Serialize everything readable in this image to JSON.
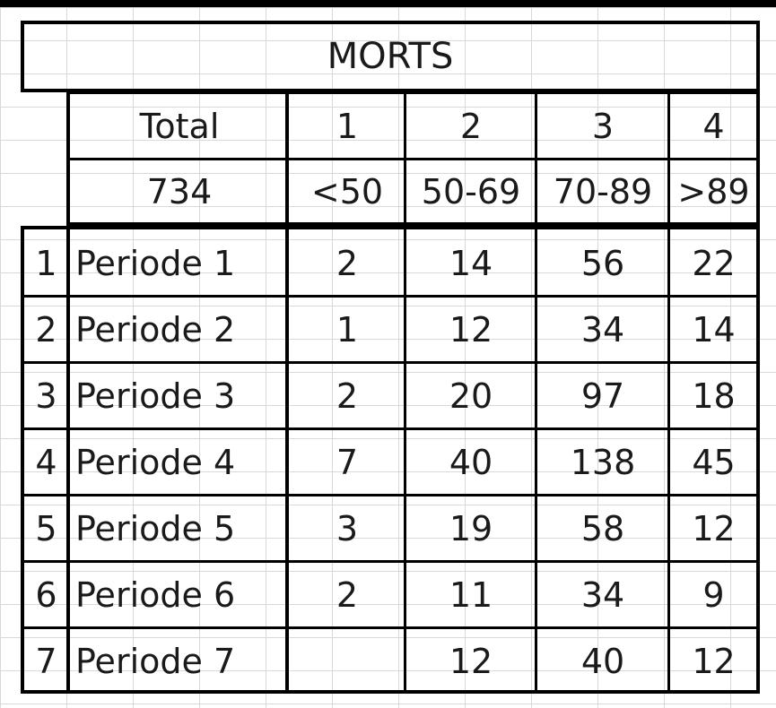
{
  "table": {
    "title": "MORTS",
    "header_groups": [
      "1",
      "2",
      "3",
      "4"
    ],
    "total_label": "Total",
    "total_value": "734",
    "age_ranges": [
      "<50",
      "50-69",
      "70-89",
      ">89"
    ],
    "rows": [
      {
        "index": "1",
        "label": "Periode 1",
        "values": [
          "2",
          "14",
          "56",
          "22"
        ]
      },
      {
        "index": "2",
        "label": "Periode 2",
        "values": [
          "1",
          "12",
          "34",
          "14"
        ]
      },
      {
        "index": "3",
        "label": "Periode 3",
        "values": [
          "2",
          "20",
          "97",
          "18"
        ]
      },
      {
        "index": "4",
        "label": "Periode 4",
        "values": [
          "7",
          "40",
          "138",
          "45"
        ]
      },
      {
        "index": "5",
        "label": "Periode 5",
        "values": [
          "3",
          "19",
          "58",
          "12"
        ]
      },
      {
        "index": "6",
        "label": "Periode 6",
        "values": [
          "2",
          "11",
          "34",
          "9"
        ]
      },
      {
        "index": "7",
        "label": "Periode 7",
        "values": [
          "",
          "12",
          "40",
          "12"
        ]
      }
    ]
  }
}
